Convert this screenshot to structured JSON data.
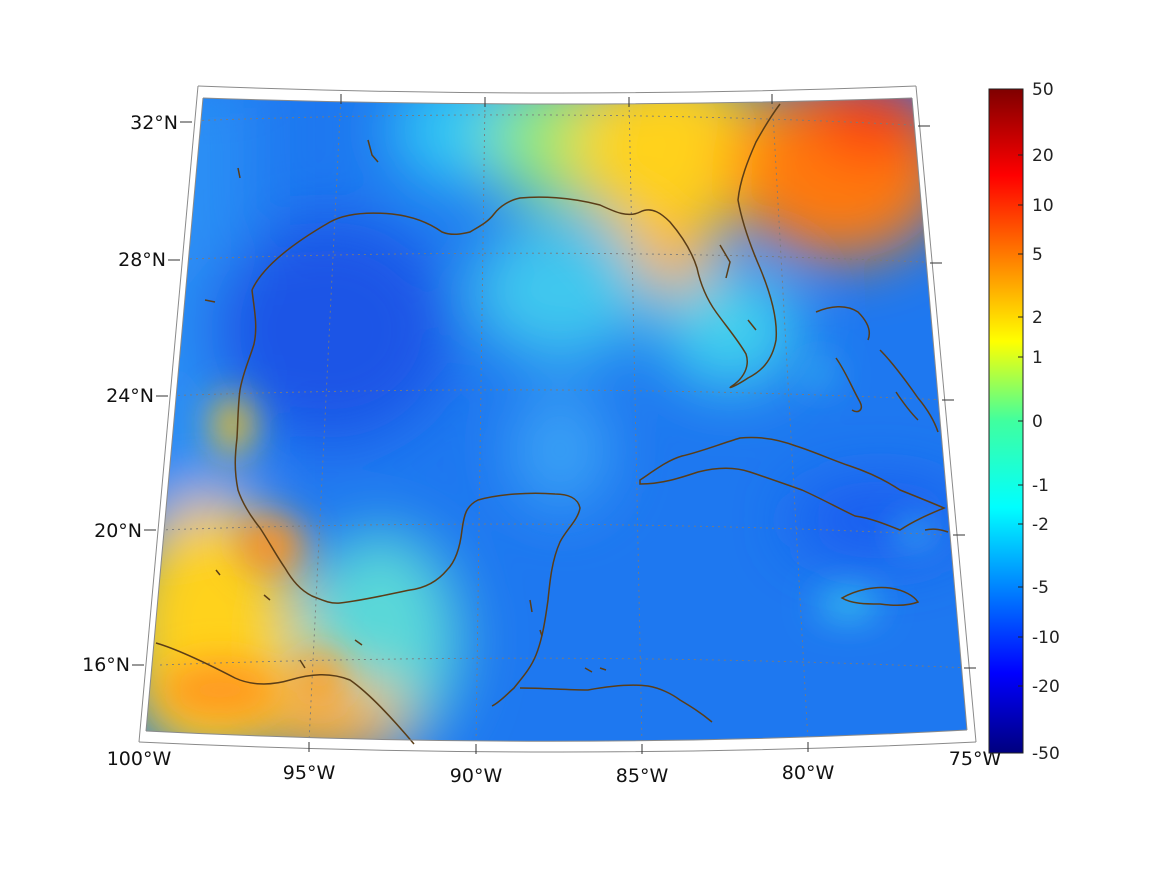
{
  "map": {
    "projection": "conic",
    "lat_labels": [
      "32°N",
      "28°N",
      "24°N",
      "20°N",
      "16°N"
    ],
    "lon_labels": [
      "100°W",
      "95°W",
      "90°W",
      "85°W",
      "80°W",
      "75°W"
    ],
    "coastline_color": "#5a3d17",
    "grid": "dotted"
  },
  "colorbar": {
    "colormap": "jet",
    "tick_labels": [
      "50",
      "20",
      "10",
      "5",
      "2",
      "1",
      "0",
      "-1",
      "-2",
      "-5",
      "-10",
      "-20",
      "-50"
    ]
  }
}
